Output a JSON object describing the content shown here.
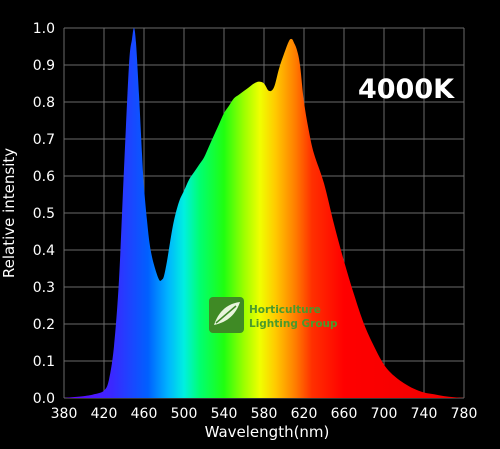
{
  "chart_data": {
    "type": "area",
    "title": "",
    "xlabel": "Wavelength(nm)",
    "ylabel": "Relative intensity",
    "xlim": [
      380,
      780
    ],
    "ylim": [
      0,
      1.0
    ],
    "x_ticks": [
      "380",
      "420",
      "460",
      "500",
      "540",
      "580",
      "620",
      "660",
      "700",
      "740",
      "780"
    ],
    "y_ticks": [
      "0.0",
      "0.1",
      "0.2",
      "0.3",
      "0.4",
      "0.5",
      "0.6",
      "0.7",
      "0.8",
      "0.9",
      "1.0"
    ],
    "grid": true,
    "annotation": "4000K",
    "fill": "visible-spectrum gradient",
    "series": [
      {
        "x": [
          380,
          400,
          410,
          420,
          425,
          430,
          435,
          440,
          445,
          448,
          450,
          452,
          455,
          458,
          460,
          463,
          466,
          470,
          475,
          478,
          480,
          483,
          486,
          490,
          495,
          500,
          505,
          510,
          515,
          520,
          525,
          530,
          535,
          540,
          545,
          550,
          555,
          560,
          565,
          570,
          575,
          580,
          585,
          590,
          595,
          600,
          605,
          608,
          610,
          613,
          616,
          620,
          625,
          630,
          640,
          650,
          660,
          670,
          680,
          690,
          700,
          710,
          720,
          730,
          740,
          750,
          760,
          770,
          780
        ],
        "y": [
          0.0,
          0.005,
          0.01,
          0.02,
          0.05,
          0.14,
          0.32,
          0.62,
          0.9,
          0.97,
          1.0,
          0.96,
          0.82,
          0.66,
          0.57,
          0.48,
          0.41,
          0.36,
          0.32,
          0.32,
          0.33,
          0.37,
          0.42,
          0.48,
          0.53,
          0.56,
          0.59,
          0.61,
          0.63,
          0.65,
          0.68,
          0.71,
          0.74,
          0.77,
          0.79,
          0.81,
          0.82,
          0.83,
          0.84,
          0.85,
          0.855,
          0.85,
          0.83,
          0.84,
          0.89,
          0.93,
          0.965,
          0.97,
          0.96,
          0.94,
          0.9,
          0.8,
          0.72,
          0.66,
          0.58,
          0.47,
          0.37,
          0.28,
          0.2,
          0.14,
          0.09,
          0.06,
          0.04,
          0.025,
          0.015,
          0.01,
          0.005,
          0.002,
          0.0
        ]
      }
    ]
  },
  "logo": {
    "line1": "Horticulture",
    "line2": "Lighting Group",
    "color": "#4a9a2c"
  }
}
